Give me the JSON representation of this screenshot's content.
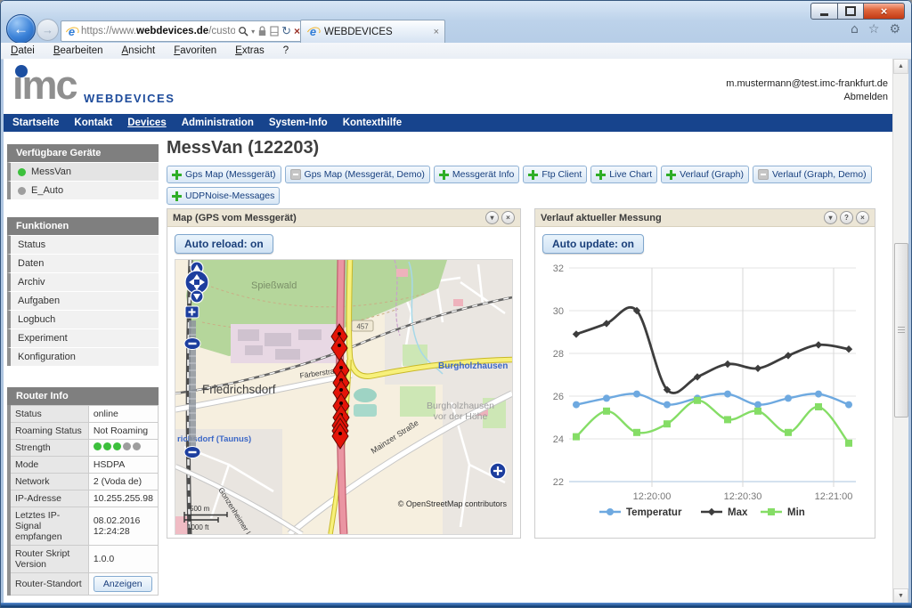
{
  "browser": {
    "tab_title": "WEBDEVICES",
    "url_scheme": "https://www.",
    "url_domain": "webdevices.de",
    "url_path": "/customer/d",
    "menu": [
      "Datei",
      "Bearbeiten",
      "Ansicht",
      "Favoriten",
      "Extras",
      "?"
    ],
    "icons": {
      "back": "←",
      "forward": "→",
      "dropdown": "▾",
      "refresh": "↻",
      "stop": "×",
      "home": "⌂",
      "favorites": "☆",
      "tools": "⚙",
      "tab_close": "×",
      "collapse": "▾",
      "help": "?",
      "close": "×"
    }
  },
  "header": {
    "logo_text": "ımc",
    "logo_sub": "WEBDEVICES",
    "user_email": "m.mustermann@test.imc-frankfurt.de",
    "logout_label": "Abmelden"
  },
  "nav": {
    "items": [
      "Startseite",
      "Kontakt",
      "Devices",
      "Administration",
      "System-Info",
      "Kontexthilfe"
    ],
    "active": "Devices"
  },
  "sidebar": {
    "devices_title": "Verfügbare Geräte",
    "devices": [
      {
        "label": "MessVan",
        "online": true,
        "selected": true
      },
      {
        "label": "E_Auto",
        "online": false,
        "selected": false
      }
    ],
    "functions_title": "Funktionen",
    "functions": [
      "Status",
      "Daten",
      "Archiv",
      "Aufgaben",
      "Logbuch",
      "Experiment",
      "Konfiguration"
    ],
    "router_title": "Router Info",
    "router_rows": [
      {
        "label": "Status",
        "value": "online"
      },
      {
        "label": "Roaming Status",
        "value": "Not Roaming"
      },
      {
        "label": "Strength",
        "dots_filled": 3,
        "dots_total": 5
      },
      {
        "label": "Mode",
        "value": "HSDPA"
      },
      {
        "label": "Network",
        "value": "2 (Voda de)"
      },
      {
        "label": "IP-Adresse",
        "value": "10.255.255.98"
      },
      {
        "label": "Letztes IP-Signal empfangen",
        "value": "08.02.2016 12:24:28"
      },
      {
        "label": "Router Skript Version",
        "value": "1.0.0"
      },
      {
        "label": "Router-Standort",
        "button": "Anzeigen"
      }
    ],
    "strength_colors": {
      "filled": "#3cc03c",
      "empty": "#9e9e9e"
    }
  },
  "main": {
    "title": "MessVan (122203)",
    "actions": [
      {
        "label": "Gps Map (Messgerät)",
        "icon": "plus"
      },
      {
        "label": "Gps Map (Messgerät, Demo)",
        "icon": "minus"
      },
      {
        "label": "Messgerät Info",
        "icon": "plus"
      },
      {
        "label": "Ftp Client",
        "icon": "plus"
      },
      {
        "label": "Live Chart",
        "icon": "plus"
      },
      {
        "label": "Verlauf (Graph)",
        "icon": "plus"
      },
      {
        "label": "Verlauf (Graph, Demo)",
        "icon": "minus"
      },
      {
        "label": "UDPNoise-Messages",
        "icon": "plus"
      }
    ],
    "map_panel": {
      "title": "Map (GPS vom Messgerät)",
      "button": "Auto reload: on",
      "labels": {
        "forest": "Spießwald",
        "city": "Friedrichsdorf",
        "city2": "Burgholzhausen",
        "city3_line1": "Burgholzhausen",
        "city3_line2": "vor der Höhe",
        "station": "richsdorf (Taunus)",
        "street1": "Färberstraße",
        "street2": "Mainzer Straße",
        "street3": "Gonzenheimer Lan",
        "road_ref": "457",
        "scale_m": "500 m",
        "scale_ft": "1000 ft",
        "attribution": "© OpenStreetMap contributors"
      },
      "markers": [
        [
          184,
          86
        ],
        [
          184,
          99
        ],
        [
          186,
          124
        ],
        [
          186,
          138
        ],
        [
          186,
          149
        ],
        [
          186,
          164
        ],
        [
          186,
          177
        ],
        [
          185,
          186
        ],
        [
          185,
          192
        ],
        [
          185,
          198
        ]
      ],
      "marker_color": "#e41408"
    },
    "chart_panel": {
      "title": "Verlauf aktueller Messung",
      "button": "Auto update: on"
    }
  },
  "chart_data": {
    "type": "line",
    "title": "Verlauf aktueller Messung",
    "xlabel": "",
    "ylabel": "",
    "ylim": [
      22,
      32
    ],
    "y_ticks": [
      22,
      24,
      26,
      28,
      30,
      32
    ],
    "x_tick_labels": [
      "12:20:00",
      "12:20:30",
      "12:21:00"
    ],
    "x_tick_positions": [
      2.5,
      5.5,
      8.5
    ],
    "grid": true,
    "legend_position": "bottom",
    "series": [
      {
        "name": "Temperatur",
        "color": "#6ea9e0",
        "marker": "circle",
        "values": [
          25.6,
          25.9,
          26.1,
          25.6,
          25.9,
          26.1,
          25.6,
          25.9,
          26.1,
          25.6
        ]
      },
      {
        "name": "Max",
        "color": "#3d3d3d",
        "marker": "diamond",
        "values": [
          28.9,
          29.4,
          30.0,
          26.3,
          26.9,
          27.5,
          27.3,
          27.9,
          28.4,
          28.2
        ]
      },
      {
        "name": "Min",
        "color": "#85dd66",
        "marker": "square",
        "values": [
          24.1,
          25.3,
          24.3,
          24.7,
          25.8,
          24.9,
          25.3,
          24.3,
          25.5,
          23.8
        ]
      }
    ]
  }
}
